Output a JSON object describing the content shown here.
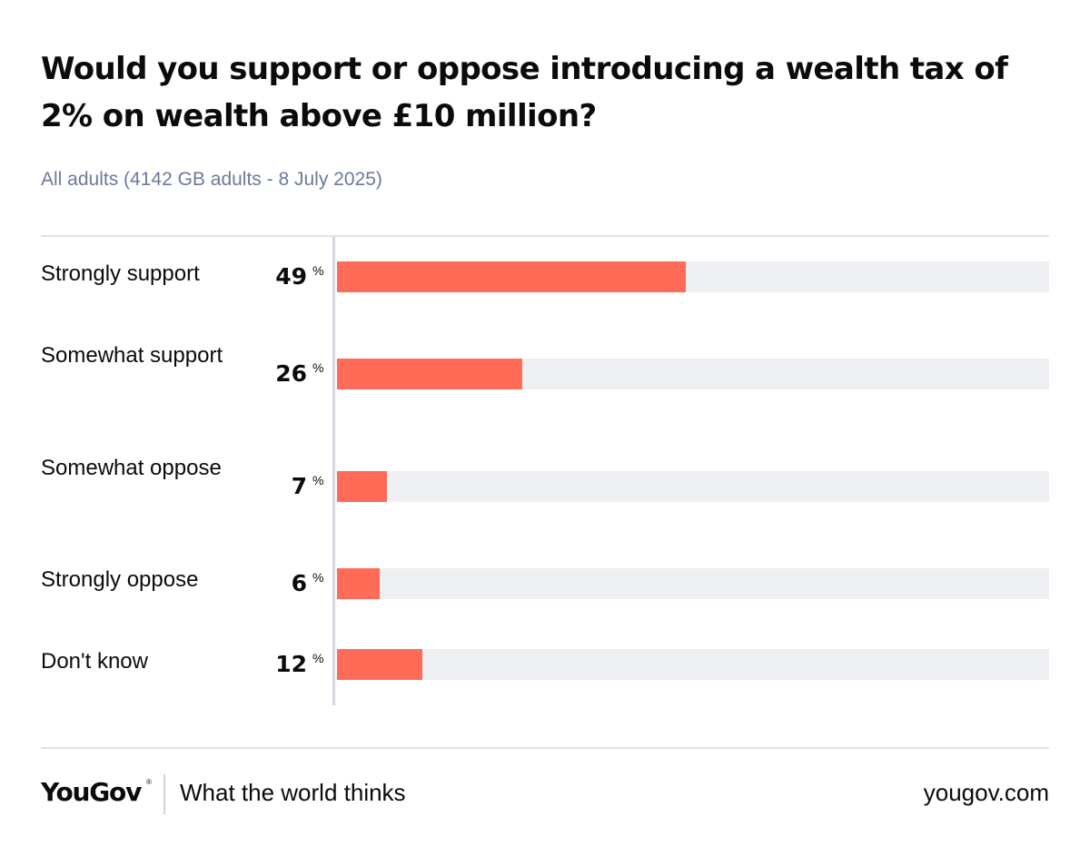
{
  "header": {
    "title": "Would you support or oppose introducing a wealth tax of 2% on wealth above £10 million?",
    "subtitle": "All adults (4142 GB adults - 8 July 2025)"
  },
  "chart_data": {
    "type": "bar",
    "orientation": "horizontal",
    "categories": [
      "Strongly support",
      "Somewhat support",
      "Somewhat oppose",
      "Strongly oppose",
      "Don't know"
    ],
    "values": [
      49,
      26,
      7,
      6,
      12
    ],
    "unit": "%",
    "xlim": [
      0,
      100
    ],
    "title": "Would you support or oppose introducing a wealth tax of 2% on wealth above £10 million?",
    "subtitle": "All adults (4142 GB adults - 8 July 2025)",
    "xlabel": "",
    "ylabel": "",
    "grid": false,
    "colors": {
      "bar": "#ff6b57",
      "track": "#eeeff3"
    }
  },
  "footer": {
    "logo": "YouGov",
    "logo_mark": "®",
    "tagline": "What the world thinks",
    "site": "yougov.com"
  }
}
